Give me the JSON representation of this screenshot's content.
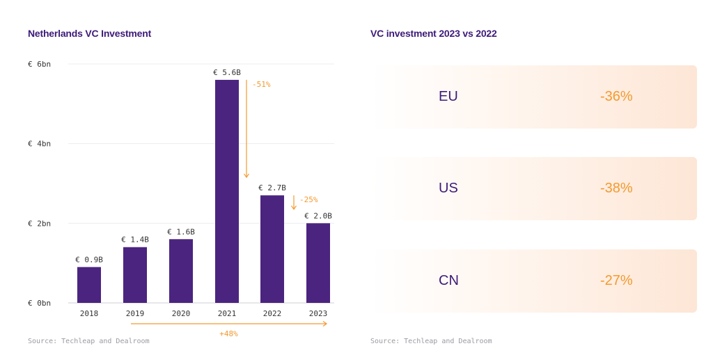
{
  "left_title": "Netherlands VC Investment",
  "right_title": "VC investment 2023 vs 2022",
  "source_left": "Source: Techleap and Dealroom",
  "source_right": "Source: Techleap and Dealroom",
  "colors": {
    "bar": "#4b2480",
    "accent": "#f39a2e",
    "title": "#3d1a78",
    "axis_text": "#333333"
  },
  "chart_data": {
    "type": "bar",
    "title": "Netherlands VC Investment",
    "categories": [
      "2018",
      "2019",
      "2020",
      "2021",
      "2022",
      "2023"
    ],
    "values": [
      0.9,
      1.4,
      1.6,
      5.6,
      2.7,
      2.0
    ],
    "value_labels": [
      "€ 0.9B",
      "€ 1.4B",
      "€ 1.6B",
      "€ 5.6B",
      "€ 2.7B",
      "€ 2.0B"
    ],
    "yticks": [
      "€ 0bn",
      "€ 2bn",
      "€ 4bn",
      "€ 6bn"
    ],
    "ylim": [
      0,
      6
    ],
    "grid": true,
    "annotations": [
      {
        "text": "-51%",
        "from": "2021",
        "to": "2022"
      },
      {
        "text": "-25%",
        "from": "2022",
        "to": "2023"
      },
      {
        "text": "+48%",
        "from": "2019",
        "to": "2023"
      }
    ]
  },
  "comparison": [
    {
      "region": "EU",
      "change": "-36%"
    },
    {
      "region": "US",
      "change": "-38%"
    },
    {
      "region": "CN",
      "change": "-27%"
    }
  ]
}
